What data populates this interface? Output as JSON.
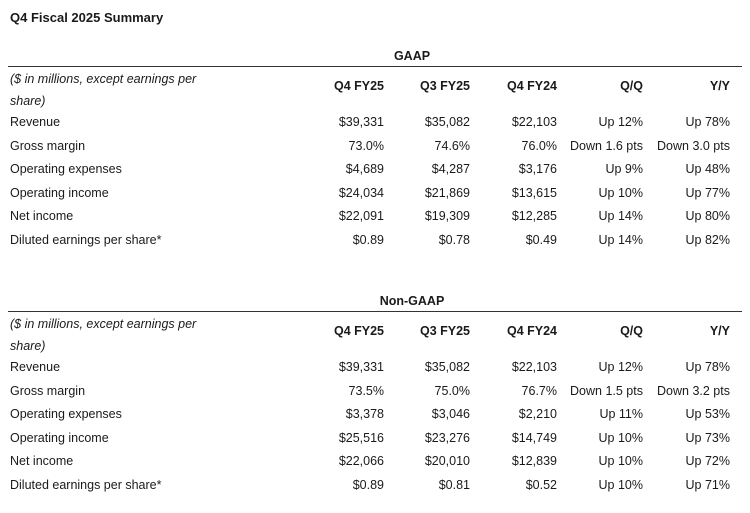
{
  "title": "Q4 Fiscal 2025 Summary",
  "gaap": {
    "heading": "GAAP",
    "description": "($ in millions, except earnings per share)",
    "columns": [
      "Q4 FY25",
      "Q3 FY25",
      "Q4 FY24",
      "Q/Q",
      "Y/Y"
    ],
    "rows": [
      {
        "label": "Revenue",
        "values": [
          "$39,331",
          "$35,082",
          "$22,103",
          "Up 12%",
          "Up 78%"
        ]
      },
      {
        "label": "Gross margin",
        "values": [
          "73.0%",
          "74.6%",
          "76.0%",
          "Down 1.6 pts",
          "Down 3.0 pts"
        ]
      },
      {
        "label": "Operating expenses",
        "values": [
          "$4,689",
          "$4,287",
          "$3,176",
          "Up 9%",
          "Up 48%"
        ]
      },
      {
        "label": "Operating income",
        "values": [
          "$24,034",
          "$21,869",
          "$13,615",
          "Up 10%",
          "Up 77%"
        ]
      },
      {
        "label": "Net income",
        "values": [
          "$22,091",
          "$19,309",
          "$12,285",
          "Up 14%",
          "Up 80%"
        ]
      },
      {
        "label": "Diluted earnings per share*",
        "values": [
          "$0.89",
          "$0.78",
          "$0.49",
          "Up 14%",
          "Up 82%"
        ]
      }
    ]
  },
  "nongaap": {
    "heading": "Non-GAAP",
    "description": "($ in millions, except earnings per share)",
    "columns": [
      "Q4 FY25",
      "Q3 FY25",
      "Q4 FY24",
      "Q/Q",
      "Y/Y"
    ],
    "rows": [
      {
        "label": "Revenue",
        "values": [
          "$39,331",
          "$35,082",
          "$22,103",
          "Up 12%",
          "Up 78%"
        ]
      },
      {
        "label": "Gross margin",
        "values": [
          "73.5%",
          "75.0%",
          "76.7%",
          "Down 1.5 pts",
          "Down 3.2 pts"
        ]
      },
      {
        "label": "Operating expenses",
        "values": [
          "$3,378",
          "$3,046",
          "$2,210",
          "Up 11%",
          "Up 53%"
        ]
      },
      {
        "label": "Operating income",
        "values": [
          "$25,516",
          "$23,276",
          "$14,749",
          "Up 10%",
          "Up 73%"
        ]
      },
      {
        "label": "Net income",
        "values": [
          "$22,066",
          "$20,010",
          "$12,839",
          "Up 10%",
          "Up 72%"
        ]
      },
      {
        "label": "Diluted earnings per share*",
        "values": [
          "$0.89",
          "$0.81",
          "$0.52",
          "Up 10%",
          "Up 71%"
        ]
      }
    ]
  }
}
